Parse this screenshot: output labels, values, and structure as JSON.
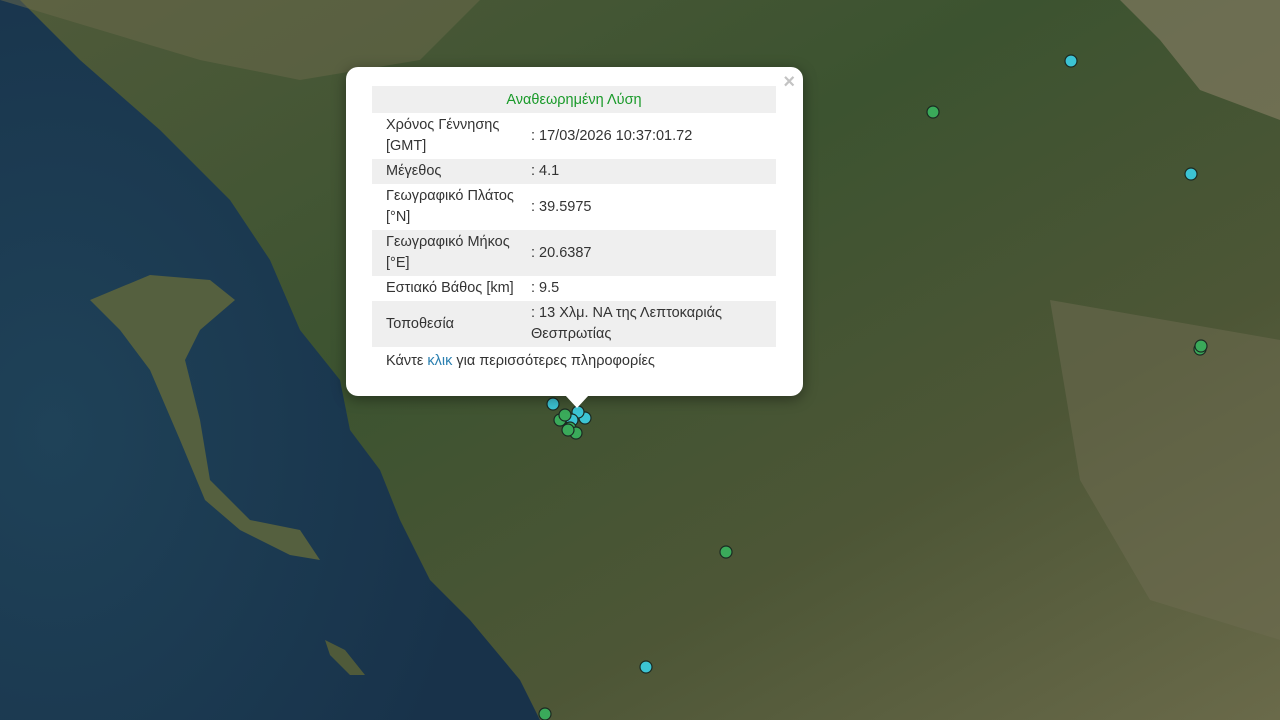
{
  "popup": {
    "title": "Αναθεωρημένη Λύση",
    "close_label": "×",
    "rows": [
      {
        "label": "Χρόνος Γέννησης [GMT]",
        "value": ": 17/03/2026 10:37:01.72"
      },
      {
        "label": "Μέγεθος",
        "value": ": 4.1"
      },
      {
        "label": "Γεωγραφικό Πλάτος [°N]",
        "value": ": 39.5975"
      },
      {
        "label": "Γεωγραφικό Μήκος [°E]",
        "value": ": 20.6387"
      },
      {
        "label": "Εστιακό Βάθος [km]",
        "value": ": 9.5"
      },
      {
        "label": "Τοποθεσία",
        "value": ": 13 Χλμ. ΝΑ της Λεπτοκαριάς Θεσπρωτίας"
      }
    ],
    "more_prefix": "Κάντε ",
    "more_link": "κλικ",
    "more_suffix": " για περισσότερες πληροφορίες"
  },
  "colors": {
    "title": "#1a9a2a",
    "link": "#2a7fb0",
    "marker_recent": "#3cc4d4",
    "marker_older": "#3aaa5a",
    "sea": "#1d3a4f"
  }
}
